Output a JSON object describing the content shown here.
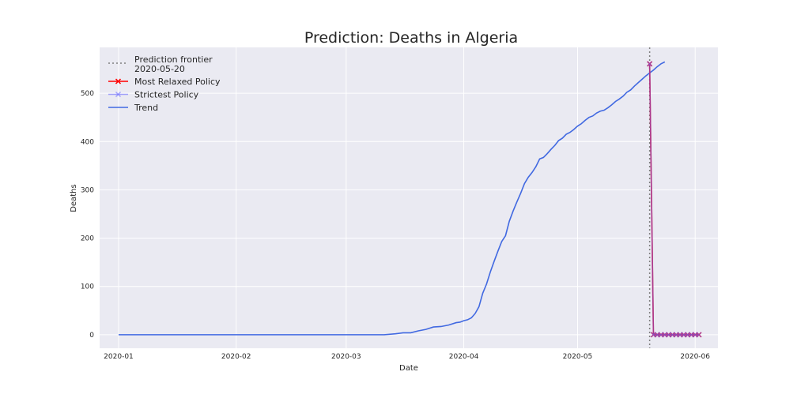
{
  "chart_data": {
    "type": "line",
    "title": "Prediction: Deaths in Algeria",
    "xlabel": "Date",
    "ylabel": "Deaths",
    "x_range": [
      "2019-12-27",
      "2020-06-07"
    ],
    "ylim": [
      -28,
      595
    ],
    "x_ticks": [
      "2020-01",
      "2020-02",
      "2020-03",
      "2020-04",
      "2020-05",
      "2020-06"
    ],
    "y_ticks": [
      0,
      100,
      200,
      300,
      400,
      500
    ],
    "grid": true,
    "legend_position": "top-left",
    "frontier": {
      "label": "Prediction frontier\n 2020-05-20",
      "date": "2020-05-20",
      "color": "#808080"
    },
    "series": [
      {
        "name": "Trend",
        "color": "#4169e1",
        "style": "line",
        "points": [
          [
            "2020-01-01",
            0
          ],
          [
            "2020-03-11",
            0
          ],
          [
            "2020-03-14",
            2
          ],
          [
            "2020-03-16",
            4
          ],
          [
            "2020-03-18",
            4
          ],
          [
            "2020-03-20",
            8
          ],
          [
            "2020-03-22",
            11
          ],
          [
            "2020-03-24",
            16
          ],
          [
            "2020-03-26",
            17
          ],
          [
            "2020-03-28",
            20
          ],
          [
            "2020-03-30",
            25
          ],
          [
            "2020-03-31",
            26
          ],
          [
            "2020-04-01",
            29
          ],
          [
            "2020-04-02",
            31
          ],
          [
            "2020-04-03",
            35
          ],
          [
            "2020-04-04",
            44
          ],
          [
            "2020-04-05",
            58
          ],
          [
            "2020-04-06",
            86
          ],
          [
            "2020-04-07",
            105
          ],
          [
            "2020-04-08",
            130
          ],
          [
            "2020-04-09",
            152
          ],
          [
            "2020-04-10",
            173
          ],
          [
            "2020-04-11",
            193
          ],
          [
            "2020-04-12",
            205
          ],
          [
            "2020-04-13",
            235
          ],
          [
            "2020-04-14",
            256
          ],
          [
            "2020-04-15",
            275
          ],
          [
            "2020-04-16",
            293
          ],
          [
            "2020-04-17",
            313
          ],
          [
            "2020-04-18",
            326
          ],
          [
            "2020-04-19",
            336
          ],
          [
            "2020-04-20",
            348
          ],
          [
            "2020-04-21",
            364
          ],
          [
            "2020-04-22",
            367
          ],
          [
            "2020-04-23",
            375
          ],
          [
            "2020-04-24",
            384
          ],
          [
            "2020-04-25",
            392
          ],
          [
            "2020-04-26",
            402
          ],
          [
            "2020-04-27",
            407
          ],
          [
            "2020-04-28",
            415
          ],
          [
            "2020-04-29",
            419
          ],
          [
            "2020-04-30",
            425
          ],
          [
            "2020-05-01",
            432
          ],
          [
            "2020-05-02",
            437
          ],
          [
            "2020-05-03",
            444
          ],
          [
            "2020-05-04",
            450
          ],
          [
            "2020-05-05",
            453
          ],
          [
            "2020-05-06",
            459
          ],
          [
            "2020-05-07",
            463
          ],
          [
            "2020-05-08",
            465
          ],
          [
            "2020-05-09",
            470
          ],
          [
            "2020-05-10",
            476
          ],
          [
            "2020-05-11",
            483
          ],
          [
            "2020-05-12",
            488
          ],
          [
            "2020-05-13",
            494
          ],
          [
            "2020-05-14",
            502
          ],
          [
            "2020-05-15",
            507
          ],
          [
            "2020-05-16",
            515
          ],
          [
            "2020-05-17",
            522
          ],
          [
            "2020-05-18",
            529
          ],
          [
            "2020-05-19",
            536
          ],
          [
            "2020-05-20",
            542
          ],
          [
            "2020-05-21",
            548
          ],
          [
            "2020-05-22",
            555
          ],
          [
            "2020-05-23",
            561
          ],
          [
            "2020-05-24",
            565
          ]
        ]
      },
      {
        "name": "Most Relaxed Policy",
        "color": "#ff0000",
        "style": "line-x-markers",
        "points": [
          [
            "2020-05-20",
            561
          ],
          [
            "2020-05-21",
            0
          ],
          [
            "2020-05-22",
            0
          ],
          [
            "2020-05-23",
            0
          ],
          [
            "2020-05-24",
            0
          ],
          [
            "2020-05-25",
            0
          ],
          [
            "2020-05-26",
            0
          ],
          [
            "2020-05-27",
            0
          ],
          [
            "2020-05-28",
            0
          ],
          [
            "2020-05-29",
            0
          ],
          [
            "2020-05-30",
            0
          ],
          [
            "2020-05-31",
            0
          ],
          [
            "2020-06-01",
            0
          ],
          [
            "2020-06-02",
            0
          ]
        ]
      },
      {
        "name": "Strictest Policy",
        "color": "#6464ff",
        "style": "line-x-markers-faded",
        "points": [
          [
            "2020-05-20",
            561
          ],
          [
            "2020-05-21",
            0
          ],
          [
            "2020-05-22",
            0
          ],
          [
            "2020-05-23",
            0
          ],
          [
            "2020-05-24",
            0
          ],
          [
            "2020-05-25",
            0
          ],
          [
            "2020-05-26",
            0
          ],
          [
            "2020-05-27",
            0
          ],
          [
            "2020-05-28",
            0
          ],
          [
            "2020-05-29",
            0
          ],
          [
            "2020-05-30",
            0
          ],
          [
            "2020-05-31",
            0
          ],
          [
            "2020-06-01",
            0
          ],
          [
            "2020-06-02",
            0
          ]
        ]
      }
    ]
  }
}
